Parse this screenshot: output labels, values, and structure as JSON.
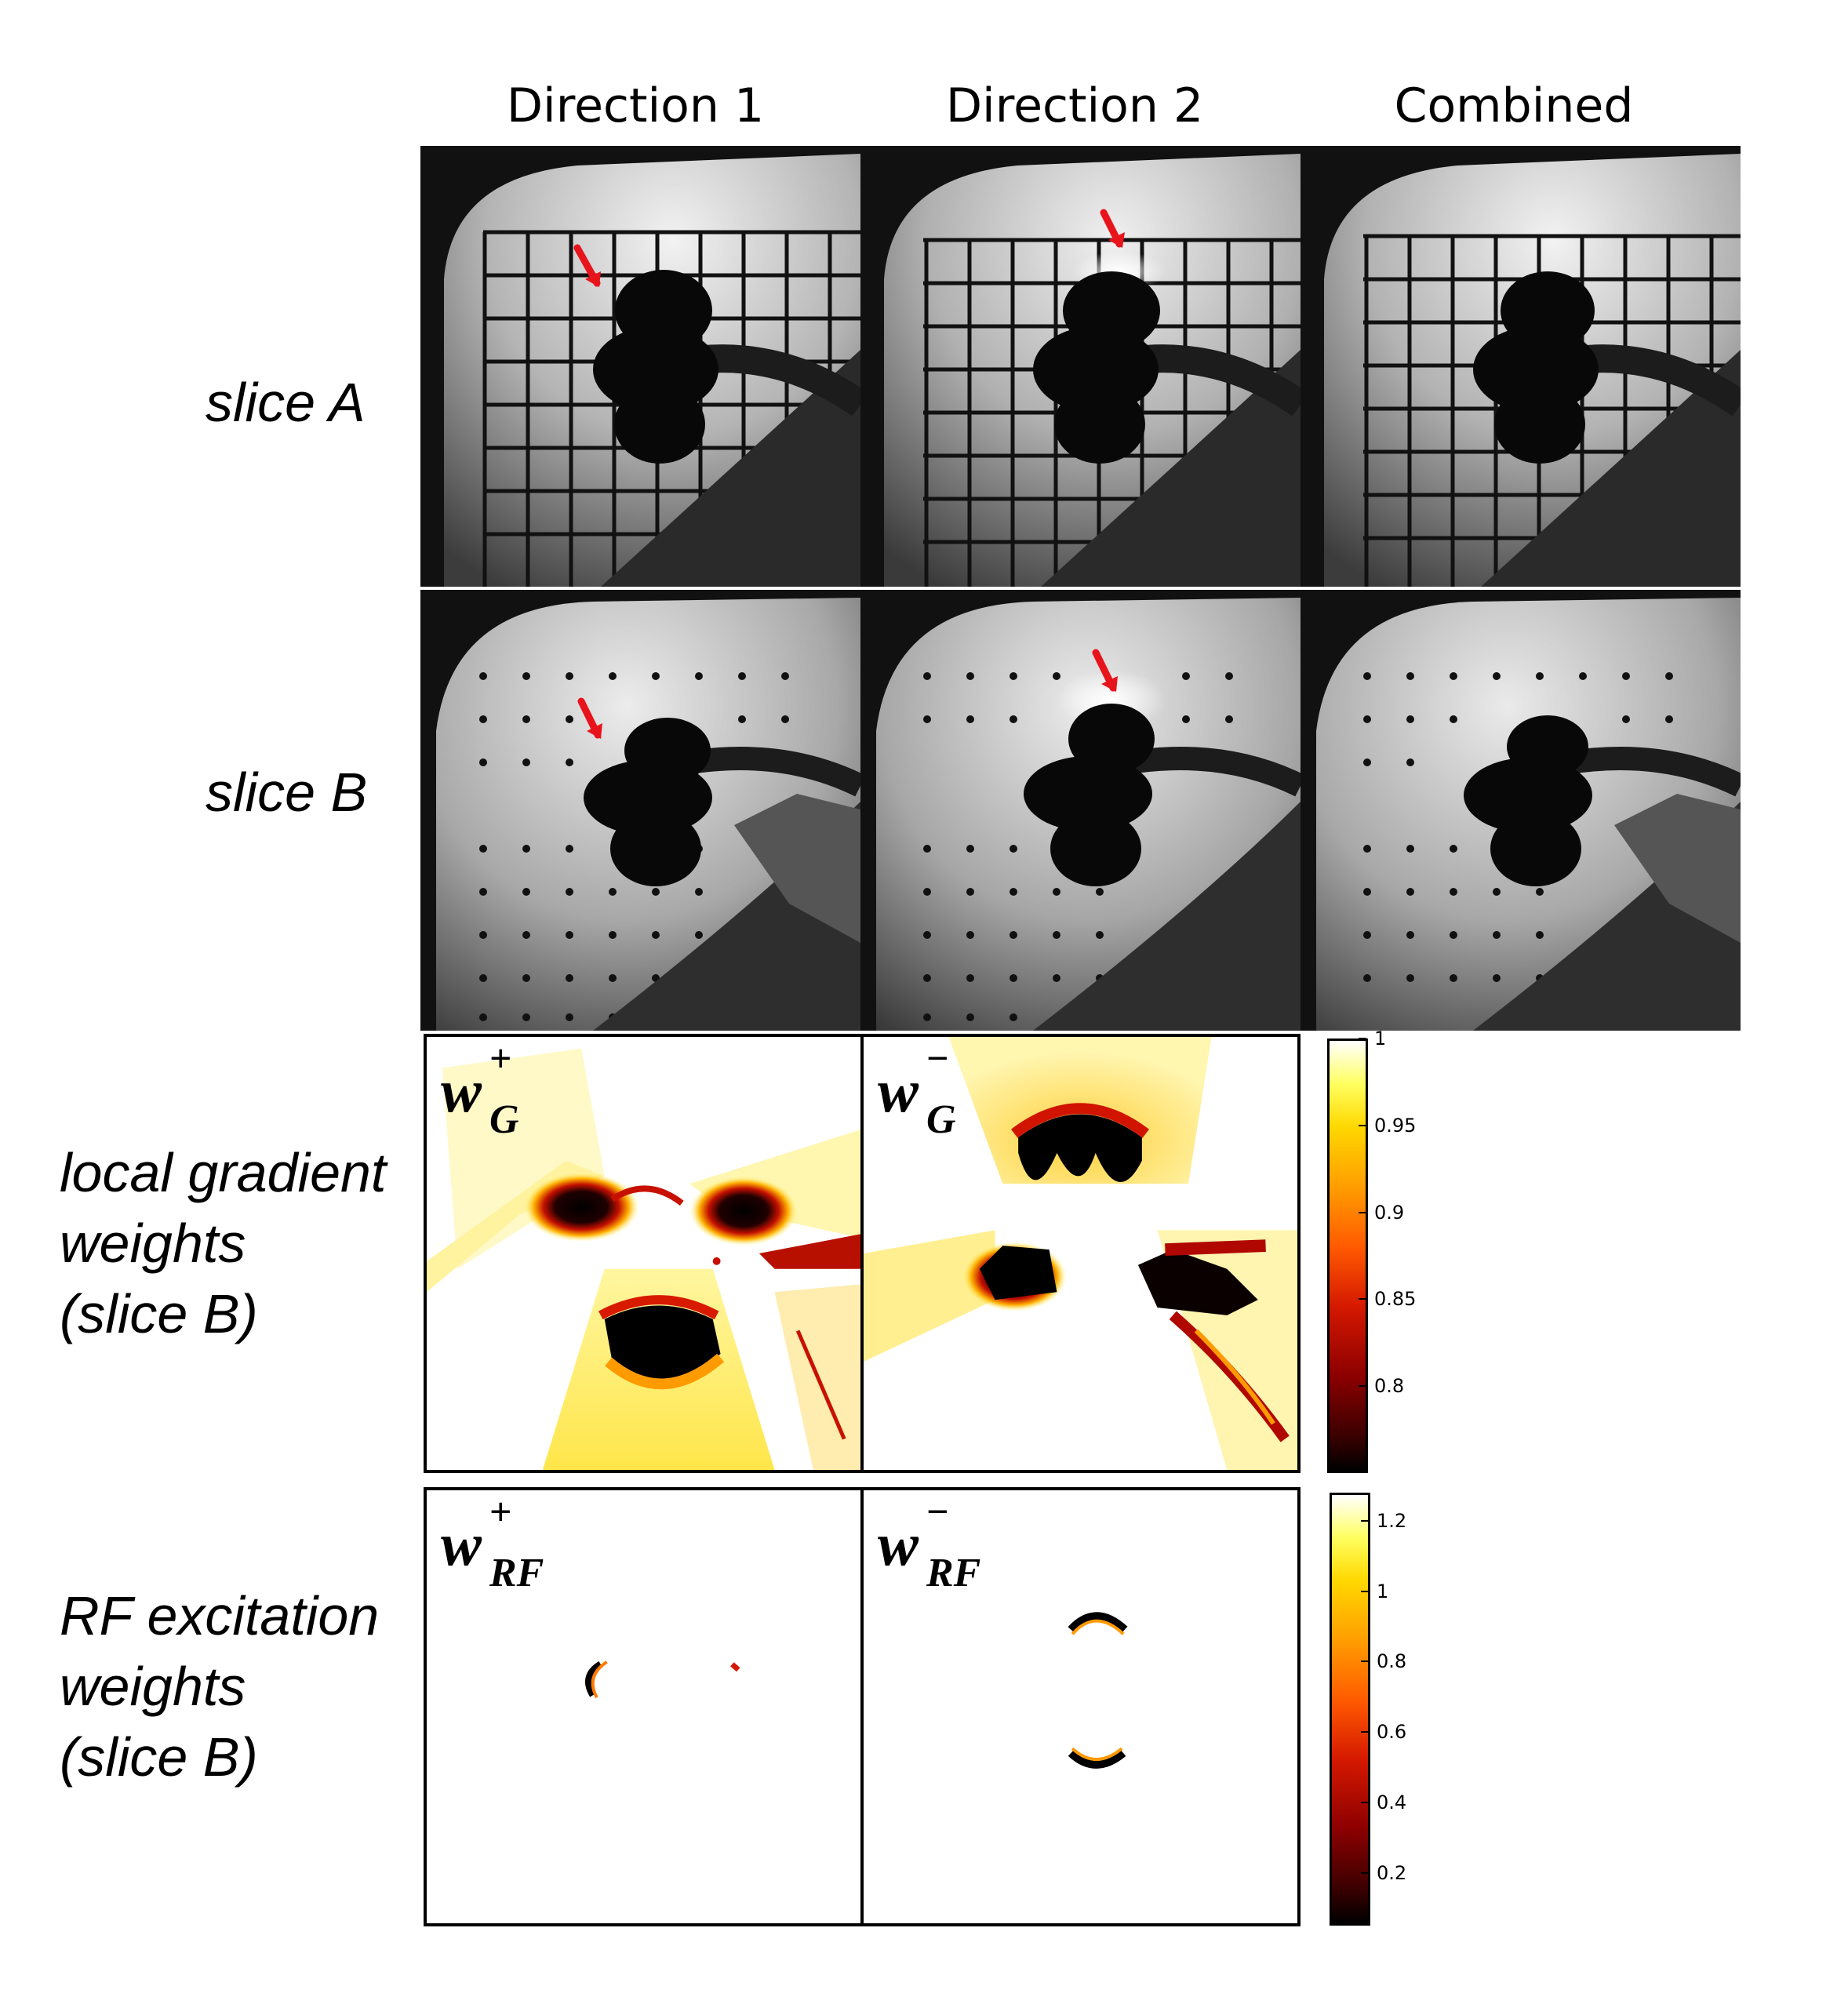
{
  "column_headers": [
    "Direction 1",
    "Direction 2",
    "Combined"
  ],
  "row_labels": {
    "slice_a": [
      "slice A"
    ],
    "slice_b": [
      "slice B"
    ],
    "gradient": [
      "local gradient",
      "weights",
      "(slice B)"
    ],
    "rf": [
      "RF excitation",
      "weights",
      "(slice B)"
    ]
  },
  "weight_panels": {
    "gradient_plus": {
      "base": "w",
      "sup": "+",
      "sub": "G"
    },
    "gradient_minus": {
      "base": "w",
      "sup": "−",
      "sub": "G"
    },
    "rf_plus": {
      "base": "w",
      "sup": "+",
      "sub": "RF"
    },
    "rf_minus": {
      "base": "w",
      "sup": "−",
      "sub": "RF"
    }
  },
  "colorbar_gradient": {
    "ticks": [
      "1",
      "0.95",
      "0.9",
      "0.85",
      "0.8"
    ],
    "tick_values": [
      1,
      0.95,
      0.9,
      0.85,
      0.8
    ],
    "range": [
      0.75,
      1
    ]
  },
  "colorbar_rf": {
    "ticks": [
      "1.2",
      "1",
      "0.8",
      "0.6",
      "0.4",
      "0.2"
    ],
    "tick_values": [
      1.2,
      1,
      0.8,
      0.6,
      0.4,
      0.2
    ],
    "range": [
      0.05,
      1.28
    ]
  },
  "colors": {
    "arrow": "#e8141c",
    "grid": "#111111"
  }
}
